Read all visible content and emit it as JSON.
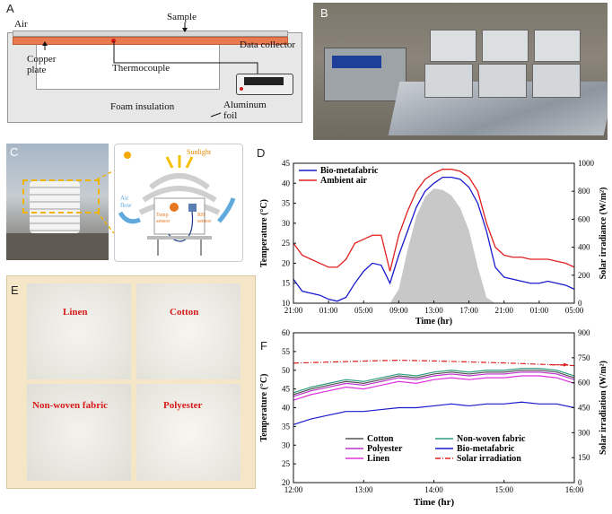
{
  "panels": {
    "A": {
      "letter": "A",
      "labels": {
        "air": "Air",
        "sample": "Sample",
        "data_collector": "Data collector",
        "copper": "Copper\nplate",
        "thermocouple": "Thermocouple",
        "foam": "Foam insulation",
        "aluminum": "Aluminum\nfoil"
      }
    },
    "B": {
      "letter": "B"
    },
    "C": {
      "letter": "C",
      "labels": {
        "sunlight": "Sunlight",
        "air_flow": "Air\nflow",
        "temp_sensor": "Temp\nsensor",
        "rh_sensor": "RH\nsensor"
      }
    },
    "D": {
      "letter": "D"
    },
    "E": {
      "letter": "E",
      "fabrics": [
        "Linen",
        "Cotton",
        "Non-woven fabric",
        "Polyester"
      ]
    },
    "F": {
      "letter": "F"
    }
  },
  "colors": {
    "bio": "#1a1acc",
    "ambient": "#e02020",
    "solar_fill": "#c8c8c8",
    "cotton": "#555555",
    "nonwoven": "#2e9c80",
    "polyester": "#bb33cc",
    "linen": "#dd33dd",
    "solar_line": "#e02020"
  },
  "chart_data": [
    {
      "type": "line",
      "panel": "D",
      "xlabel": "Time (hr)",
      "ylabel": "Temperature (°C)",
      "y2label": "Solar irradiance (W/m²)",
      "xticks": [
        "21:00",
        "01:00",
        "05:00",
        "09:00",
        "13:00",
        "17:00",
        "21:00",
        "01:00",
        "05:00"
      ],
      "ylim": [
        10,
        45
      ],
      "yticks": [
        10,
        15,
        20,
        25,
        30,
        35,
        40,
        45
      ],
      "y2lim": [
        0,
        1000
      ],
      "y2ticks": [
        0,
        200,
        400,
        600,
        800,
        1000
      ],
      "legend": [
        "Bio-metafabric",
        "Ambient air"
      ],
      "legend_position": "top-left",
      "x_hours": [
        0,
        1,
        2,
        3,
        4,
        5,
        6,
        7,
        8,
        9,
        10,
        11,
        12,
        13,
        14,
        15,
        16,
        17,
        18,
        19,
        20,
        21,
        22,
        23,
        24,
        25,
        26,
        27,
        28,
        29,
        30,
        31,
        32
      ],
      "series": [
        {
          "name": "Bio-metafabric",
          "axis": "left",
          "values": [
            16,
            13,
            12.5,
            12,
            11,
            10.5,
            11.5,
            15,
            18,
            20,
            19.5,
            15,
            22,
            28,
            34,
            38,
            40,
            41.5,
            41.5,
            41,
            39,
            35,
            28,
            19,
            16.5,
            16,
            15.5,
            15,
            15,
            15.5,
            15,
            14.5,
            13.5
          ]
        },
        {
          "name": "Ambient air",
          "axis": "left",
          "values": [
            25,
            22,
            21,
            20,
            19,
            19,
            21,
            25,
            26,
            27,
            27,
            18,
            27,
            33,
            38,
            41,
            42.5,
            43.5,
            43.5,
            43,
            41.5,
            38,
            30,
            24,
            22,
            21.5,
            21.5,
            21,
            21,
            21,
            20.5,
            20,
            19
          ]
        },
        {
          "name": "",
          "axis": "right",
          "kind": "area",
          "values": [
            0,
            0,
            0,
            0,
            0,
            0,
            0,
            0,
            0,
            0,
            0,
            0,
            100,
            380,
            620,
            760,
            820,
            810,
            770,
            680,
            520,
            260,
            40,
            0,
            0,
            0,
            0,
            0,
            0,
            0,
            0,
            0,
            0
          ]
        }
      ]
    },
    {
      "type": "line",
      "panel": "F",
      "xlabel": "Time  (hr)",
      "ylabel": "Temperature (°C)",
      "y2label": "Solar irradiation (W/m²)",
      "xticks": [
        "12:00",
        "13:00",
        "14:00",
        "15:00",
        "16:00"
      ],
      "ylim": [
        20,
        60
      ],
      "yticks": [
        20,
        25,
        30,
        35,
        40,
        45,
        50,
        55,
        60
      ],
      "y2lim": [
        0,
        900
      ],
      "y2ticks": [
        0,
        150,
        300,
        450,
        600,
        750,
        900
      ],
      "legend": [
        "Cotton",
        "Non-woven fabric",
        "Polyester",
        "Bio-metafabric",
        "Linen",
        "Solar irradiation"
      ],
      "legend_position": "bottom-center",
      "x": [
        12.0,
        12.25,
        12.5,
        12.75,
        13.0,
        13.25,
        13.5,
        13.75,
        14.0,
        14.25,
        14.5,
        14.75,
        15.0,
        15.25,
        15.5,
        15.75,
        16.0
      ],
      "series": [
        {
          "name": "Cotton",
          "axis": "left",
          "values": [
            43.5,
            45,
            46,
            47,
            46.5,
            47.5,
            48.5,
            48,
            49,
            49.5,
            49,
            49.5,
            49.5,
            50,
            50,
            49.5,
            48
          ]
        },
        {
          "name": "Non-woven fabric",
          "axis": "left",
          "values": [
            44,
            45.5,
            46.5,
            47.5,
            47,
            48,
            49,
            48.5,
            49.5,
            50,
            49.5,
            50,
            50,
            50.5,
            50.5,
            50,
            48.5
          ]
        },
        {
          "name": "Polyester",
          "axis": "left",
          "values": [
            43,
            44.5,
            45.5,
            46.5,
            46,
            47,
            48,
            47.5,
            48.5,
            49,
            48.5,
            49,
            49,
            49.5,
            49.5,
            49,
            47.5
          ]
        },
        {
          "name": "Bio-metafabric",
          "axis": "left",
          "values": [
            35.5,
            37,
            38,
            39,
            39,
            39.5,
            40,
            40,
            40.5,
            41,
            40.5,
            41,
            41,
            41.5,
            41,
            41,
            40
          ]
        },
        {
          "name": "Linen",
          "axis": "left",
          "values": [
            42,
            43.5,
            44.5,
            45.5,
            45,
            46,
            47,
            46.5,
            47.5,
            48,
            47.5,
            48,
            48,
            48.5,
            48.5,
            48,
            46.5
          ]
        },
        {
          "name": "Solar irradiation",
          "axis": "right",
          "values": [
            718,
            721,
            724,
            727,
            730,
            733,
            735,
            733,
            731,
            728,
            725,
            722,
            719,
            715,
            711,
            707,
            703
          ]
        }
      ]
    }
  ]
}
